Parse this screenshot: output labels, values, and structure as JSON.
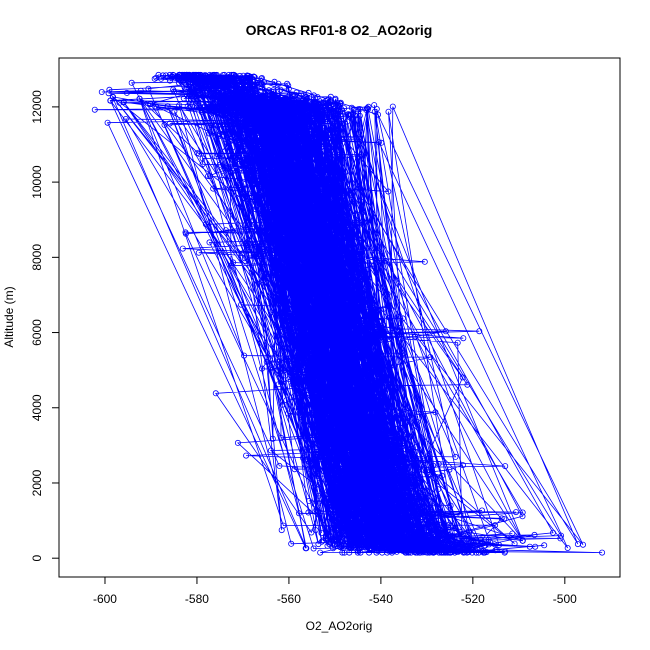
{
  "chart_data": {
    "type": "scatter",
    "title": "ORCAS RF01-8 O2_AO2orig",
    "xlabel": "O2_AO2orig",
    "ylabel": "Altitude (m)",
    "xlim": [
      -610,
      -488
    ],
    "ylim": [
      -500,
      13300
    ],
    "xticks": [
      -600,
      -580,
      -560,
      -540,
      -520,
      -500
    ],
    "yticks": [
      0,
      2000,
      4000,
      6000,
      8000,
      10000,
      12000
    ],
    "series_color": "#0000ff",
    "marker": "open-circle",
    "connected_by_lines": true,
    "grid": false,
    "legend": "none",
    "profile_envelope": [
      {
        "y": 150,
        "x_min": -563,
        "x_max": -491
      },
      {
        "y": 1000,
        "x_min": -566,
        "x_max": -508
      },
      {
        "y": 2000,
        "x_min": -570,
        "x_max": -510
      },
      {
        "y": 3000,
        "x_min": -572,
        "x_max": -515
      },
      {
        "y": 4000,
        "x_min": -577,
        "x_max": -518
      },
      {
        "y": 5000,
        "x_min": -580,
        "x_max": -522
      },
      {
        "y": 6000,
        "x_min": -575,
        "x_max": -516
      },
      {
        "y": 7000,
        "x_min": -575,
        "x_max": -528
      },
      {
        "y": 8000,
        "x_min": -586,
        "x_max": -530
      },
      {
        "y": 9000,
        "x_min": -582,
        "x_max": -535
      },
      {
        "y": 10000,
        "x_min": -590,
        "x_max": -535
      },
      {
        "y": 11000,
        "x_min": -594,
        "x_max": -535
      },
      {
        "y": 12000,
        "x_min": -606,
        "x_max": -527
      },
      {
        "y": 12850,
        "x_min": -595,
        "x_max": -570
      }
    ]
  }
}
